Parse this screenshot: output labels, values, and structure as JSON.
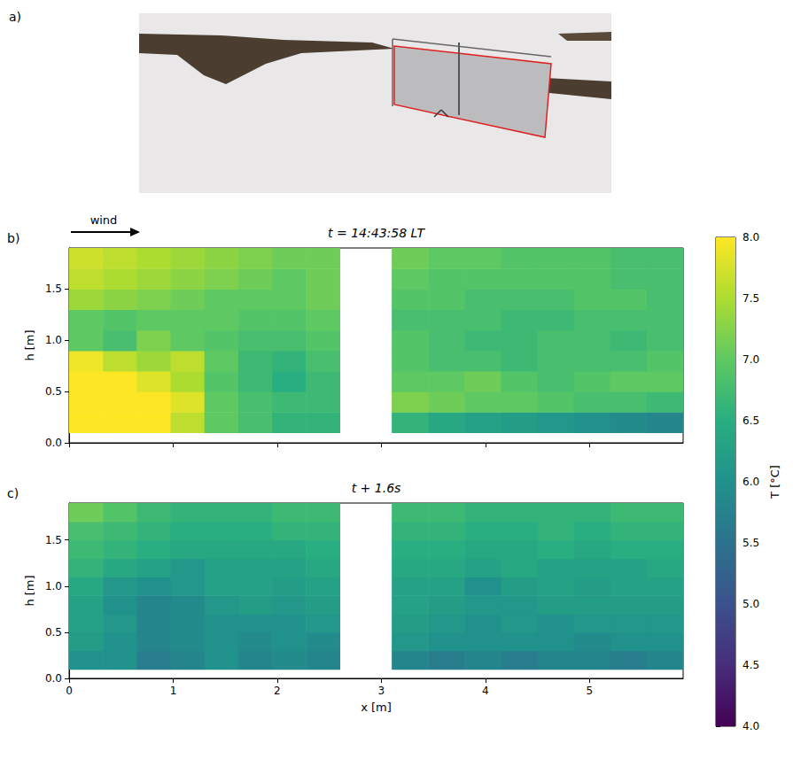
{
  "panel_a": {
    "label": "a)"
  },
  "colorbar": {
    "label": "T [°C]",
    "range": [
      4,
      8
    ],
    "ticks": [
      {
        "value": 4,
        "label": "4.0"
      },
      4.5,
      {
        "value": 5,
        "label": "5.0"
      },
      5.5,
      {
        "value": 6,
        "label": "6.0"
      },
      6.5,
      {
        "value": 7,
        "label": "7.0"
      },
      7.5,
      {
        "value": 8,
        "label": "8.0"
      }
    ]
  },
  "chart_data": [
    {
      "type": "heatmap",
      "label": "b)",
      "title": "t = 14:43:58 LT",
      "annotation": "wind",
      "ylabel": "h [m]",
      "xlim": [
        0,
        5.9
      ],
      "ylim": [
        0,
        1.9
      ],
      "xticks": [
        0,
        1,
        2,
        3,
        4,
        5
      ],
      "yticks": [
        {
          "value": 0,
          "label": "0.0"
        },
        0.5,
        {
          "value": 1,
          "label": "1.0"
        },
        1.5
      ],
      "tick_labels": "y",
      "x_edges": [
        0,
        0.325,
        0.65,
        0.975,
        1.3,
        1.625,
        1.95,
        2.275,
        2.6,
        3.1,
        3.45,
        3.8,
        4.15,
        4.5,
        4.85,
        5.2,
        5.55,
        5.9
      ],
      "y_edges": [
        0.1,
        0.3,
        0.5,
        0.7,
        0.9,
        1.1,
        1.3,
        1.5,
        1.7,
        1.9
      ],
      "cells": [
        [
          8.0,
          8.0,
          8.0,
          7.6,
          7.0,
          6.8,
          6.6,
          6.6,
          null,
          6.6,
          6.4,
          6.3,
          6.2,
          6.1,
          6.0,
          5.9,
          5.8
        ],
        [
          8.0,
          8.0,
          8.0,
          7.8,
          7.0,
          6.8,
          6.7,
          6.7,
          null,
          7.2,
          7.1,
          7.0,
          7.0,
          6.9,
          6.8,
          6.8,
          6.7
        ],
        [
          8.0,
          8.0,
          7.8,
          7.5,
          6.9,
          6.7,
          6.5,
          6.7,
          null,
          7.0,
          7.0,
          7.1,
          6.9,
          6.8,
          6.9,
          7.0,
          7.0
        ],
        [
          7.9,
          7.6,
          7.4,
          7.6,
          7.0,
          6.7,
          6.6,
          6.8,
          null,
          6.9,
          6.8,
          6.8,
          6.7,
          6.8,
          6.8,
          6.8,
          6.9
        ],
        [
          7.0,
          6.8,
          7.2,
          7.0,
          6.9,
          6.8,
          6.8,
          6.9,
          null,
          6.9,
          6.8,
          6.7,
          6.7,
          6.8,
          6.8,
          6.7,
          6.8
        ],
        [
          7.0,
          6.9,
          7.0,
          7.0,
          7.0,
          6.9,
          6.9,
          7.0,
          null,
          6.8,
          6.8,
          6.8,
          6.7,
          6.7,
          6.8,
          6.8,
          6.8
        ],
        [
          7.4,
          7.3,
          7.2,
          7.1,
          7.0,
          7.0,
          7.0,
          7.1,
          null,
          6.9,
          6.9,
          6.8,
          6.8,
          6.8,
          6.9,
          6.9,
          6.8
        ],
        [
          7.6,
          7.5,
          7.4,
          7.3,
          7.2,
          7.1,
          7.0,
          7.1,
          null,
          7.0,
          6.9,
          6.9,
          6.9,
          6.9,
          6.9,
          6.8,
          6.8
        ],
        [
          7.7,
          7.6,
          7.5,
          7.4,
          7.3,
          7.2,
          7.1,
          7.1,
          null,
          7.1,
          7.0,
          7.0,
          6.9,
          6.9,
          6.9,
          6.8,
          6.8
        ]
      ]
    },
    {
      "type": "heatmap",
      "label": "c)",
      "title": "t + 1.6s",
      "xlabel": "x [m]",
      "ylabel": "h [m]",
      "xlim": [
        0,
        5.9
      ],
      "ylim": [
        0,
        1.9
      ],
      "xticks": [
        0,
        1,
        2,
        3,
        4,
        5
      ],
      "yticks": [
        {
          "value": 0,
          "label": "0.0"
        },
        0.5,
        {
          "value": 1,
          "label": "1.0"
        },
        1.5
      ],
      "tick_labels": true,
      "x_edges": [
        0,
        0.325,
        0.65,
        0.975,
        1.3,
        1.625,
        1.95,
        2.275,
        2.6,
        3.1,
        3.45,
        3.8,
        4.15,
        4.5,
        4.85,
        5.2,
        5.55,
        5.9
      ],
      "y_edges": [
        0.1,
        0.3,
        0.5,
        0.7,
        0.9,
        1.1,
        1.3,
        1.5,
        1.7,
        1.9
      ],
      "cells": [
        [
          6.0,
          6.0,
          5.7,
          5.8,
          6.0,
          5.8,
          5.9,
          5.8,
          null,
          5.8,
          5.7,
          5.8,
          5.7,
          5.8,
          5.8,
          5.7,
          5.8
        ],
        [
          6.2,
          6.0,
          5.8,
          5.9,
          6.0,
          5.9,
          6.0,
          5.9,
          null,
          6.1,
          6.0,
          6.0,
          6.0,
          6.0,
          5.9,
          6.0,
          6.0
        ],
        [
          6.3,
          6.1,
          5.8,
          5.9,
          6.0,
          6.0,
          6.0,
          6.1,
          null,
          6.2,
          6.1,
          6.0,
          6.1,
          6.0,
          6.1,
          6.1,
          6.1
        ],
        [
          6.3,
          6.0,
          5.8,
          5.9,
          6.1,
          6.2,
          6.1,
          6.2,
          null,
          6.3,
          6.2,
          6.1,
          6.1,
          6.2,
          6.2,
          6.2,
          6.2
        ],
        [
          6.4,
          6.1,
          6.0,
          6.1,
          6.3,
          6.3,
          6.2,
          6.3,
          null,
          6.3,
          6.3,
          6.0,
          6.2,
          6.3,
          6.2,
          6.3,
          6.3
        ],
        [
          6.6,
          6.4,
          6.3,
          6.1,
          6.3,
          6.3,
          6.3,
          6.4,
          null,
          6.4,
          6.4,
          6.3,
          6.4,
          6.3,
          6.3,
          6.3,
          6.4
        ],
        [
          6.7,
          6.6,
          6.5,
          6.4,
          6.4,
          6.4,
          6.4,
          6.5,
          null,
          6.5,
          6.5,
          6.4,
          6.4,
          6.5,
          6.4,
          6.5,
          6.5
        ],
        [
          6.8,
          6.7,
          6.6,
          6.5,
          6.5,
          6.5,
          6.6,
          6.6,
          null,
          6.6,
          6.6,
          6.5,
          6.5,
          6.6,
          6.5,
          6.6,
          6.6
        ],
        [
          7.1,
          6.9,
          6.7,
          6.6,
          6.6,
          6.6,
          6.7,
          6.7,
          null,
          6.7,
          6.7,
          6.6,
          6.6,
          6.6,
          6.6,
          6.7,
          6.7
        ]
      ]
    }
  ]
}
